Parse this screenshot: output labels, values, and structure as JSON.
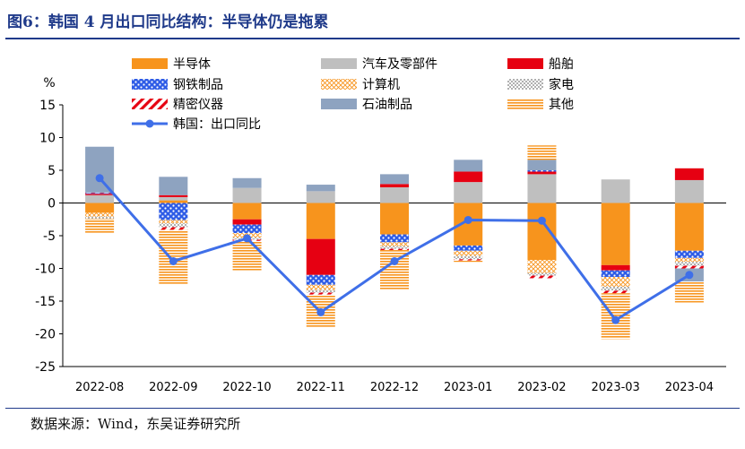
{
  "figure_title": "图6：韩国 4 月出口同比结构：半导体仍是拖累",
  "source_note": "数据来源：Wind，东吴证券研究所",
  "chart_data": {
    "type": "bar",
    "stacked": true,
    "ylabel": "%",
    "ylim": [
      -25,
      15
    ],
    "yticks": [
      -25,
      -20,
      -15,
      -10,
      -5,
      0,
      5,
      10,
      15
    ],
    "grid": false,
    "legend_position": "top",
    "categories": [
      "2022-08",
      "2022-09",
      "2022-10",
      "2022-11",
      "2022-12",
      "2023-01",
      "2023-02",
      "2023-03",
      "2023-04"
    ],
    "series": [
      {
        "name": "半导体",
        "pattern": "solid",
        "color": "#f7941d",
        "values": [
          -1.5,
          0.4,
          -2.5,
          -5.5,
          -4.8,
          -6.5,
          -8.7,
          -9.5,
          -7.3
        ]
      },
      {
        "name": "汽车及零部件",
        "pattern": "solid",
        "color": "#bfbfbf",
        "values": [
          1.2,
          0.5,
          2.3,
          1.8,
          2.4,
          3.2,
          4.4,
          3.6,
          3.5
        ]
      },
      {
        "name": "船舶",
        "pattern": "solid",
        "color": "#e60012",
        "values": [
          0.2,
          0.3,
          -0.8,
          -5.5,
          0.5,
          1.6,
          0.4,
          -0.8,
          1.8
        ]
      },
      {
        "name": "钢铁制品",
        "pattern": "dots",
        "color": "#2e5ce6",
        "values": [
          0.1,
          -2.6,
          -1.3,
          -1.5,
          -1.2,
          -0.8,
          0.2,
          -1.0,
          -1.1
        ]
      },
      {
        "name": "计算机",
        "pattern": "crosshatch",
        "color": "#f7941d",
        "values": [
          -0.6,
          -0.5,
          -0.7,
          -0.8,
          -0.6,
          -0.8,
          -2.0,
          -1.5,
          -0.6
        ]
      },
      {
        "name": "家电",
        "pattern": "checker",
        "color": "#bfbfbf",
        "values": [
          -0.3,
          -0.6,
          -0.3,
          -0.4,
          -0.4,
          -0.5,
          -0.4,
          -0.6,
          -0.6
        ]
      },
      {
        "name": "精密仪器",
        "pattern": "diagonal",
        "color": "#e60012",
        "values": [
          0.1,
          -0.4,
          -0.2,
          -0.3,
          -0.2,
          -0.2,
          -0.4,
          -0.4,
          -0.4
        ]
      },
      {
        "name": "石油制品",
        "pattern": "solid",
        "color": "#8ea3c0",
        "values": [
          7.0,
          2.8,
          1.5,
          1.0,
          1.5,
          1.8,
          1.6,
          0.0,
          -2.0
        ]
      },
      {
        "name": "其他",
        "pattern": "horizontal",
        "color": "#f7941d",
        "values": [
          -2.3,
          -8.3,
          -4.5,
          -5.0,
          -6.0,
          -0.2,
          2.2,
          -7.0,
          -3.2
        ]
      }
    ],
    "line": {
      "name": "韩国：出口同比",
      "color": "#3f6fe8",
      "values": [
        3.8,
        -8.9,
        -5.4,
        -16.7,
        -8.9,
        -2.6,
        -2.7,
        -17.9,
        -11.0
      ]
    }
  }
}
